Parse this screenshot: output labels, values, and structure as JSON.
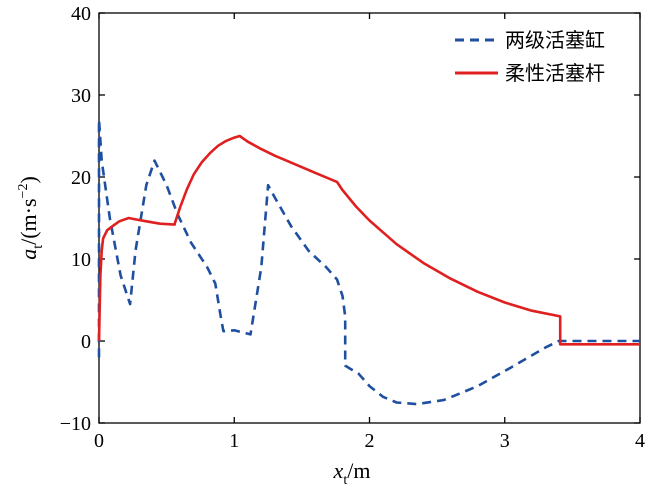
{
  "chart_data": {
    "type": "line",
    "xlim": [
      0,
      4
    ],
    "ylim": [
      -10,
      40
    ],
    "x_ticks": [
      0,
      1,
      2,
      3,
      4
    ],
    "y_ticks": [
      -10,
      0,
      10,
      20,
      30,
      40
    ],
    "x_tick_labels": [
      "0",
      "1",
      "2",
      "3",
      "4"
    ],
    "y_tick_labels": [
      "−10",
      "0",
      "10",
      "20",
      "30",
      "40"
    ],
    "xlabel": {
      "var": "x",
      "sub": "t",
      "unit": "/m"
    },
    "ylabel": {
      "var": "a",
      "sub": "t",
      "unit": "/(m·s",
      "exp": "−2",
      "close": ")"
    },
    "grid": false,
    "legend_position": "top-right",
    "series": [
      {
        "name": "两级活塞缸",
        "color": "#1f4fa0",
        "style": "dashed",
        "x": [
          0.0,
          0.0,
          0.02,
          0.08,
          0.16,
          0.23,
          0.27,
          0.35,
          0.41,
          0.5,
          0.58,
          0.68,
          0.8,
          0.86,
          0.88,
          0.9,
          0.92,
          1.0,
          1.12,
          1.2,
          1.25,
          1.3,
          1.42,
          1.55,
          1.68,
          1.76,
          1.8,
          1.82,
          1.82,
          1.85,
          1.92,
          2.0,
          2.1,
          2.2,
          2.35,
          2.55,
          2.8,
          3.05,
          3.3,
          3.4,
          3.45,
          4.0
        ],
        "y": [
          -2.0,
          27.0,
          22.0,
          15.0,
          8.0,
          4.5,
          11.0,
          19.0,
          22.0,
          19.0,
          15.5,
          12.0,
          9.0,
          7.0,
          5.0,
          3.0,
          1.2,
          1.3,
          0.8,
          9.0,
          19.0,
          17.5,
          14.0,
          11.0,
          9.0,
          7.5,
          5.5,
          3.0,
          -3.0,
          -3.3,
          -4.0,
          -5.5,
          -6.8,
          -7.5,
          -7.7,
          -7.2,
          -5.5,
          -3.2,
          -0.8,
          0.0,
          0.0,
          0.0
        ]
      },
      {
        "name": "柔性活塞杆",
        "color": "#e02020",
        "style": "solid",
        "x": [
          0.0,
          0.01,
          0.02,
          0.03,
          0.06,
          0.1,
          0.15,
          0.22,
          0.28,
          0.35,
          0.45,
          0.56,
          0.56,
          0.6,
          0.65,
          0.7,
          0.76,
          0.82,
          0.88,
          0.94,
          1.0,
          1.04,
          1.1,
          1.2,
          1.3,
          1.4,
          1.5,
          1.6,
          1.7,
          1.76,
          1.8,
          1.9,
          2.0,
          2.2,
          2.4,
          2.6,
          2.8,
          3.0,
          3.2,
          3.41,
          3.41,
          4.0
        ],
        "y": [
          0.0,
          8.0,
          11.0,
          12.5,
          13.5,
          14.0,
          14.6,
          15.0,
          14.8,
          14.6,
          14.3,
          14.2,
          14.3,
          16.3,
          18.5,
          20.3,
          21.8,
          22.9,
          23.8,
          24.4,
          24.8,
          25.0,
          24.3,
          23.4,
          22.6,
          21.9,
          21.2,
          20.5,
          19.8,
          19.4,
          18.4,
          16.4,
          14.7,
          11.8,
          9.5,
          7.6,
          6.0,
          4.7,
          3.7,
          3.0,
          -0.4,
          -0.4
        ]
      }
    ]
  }
}
